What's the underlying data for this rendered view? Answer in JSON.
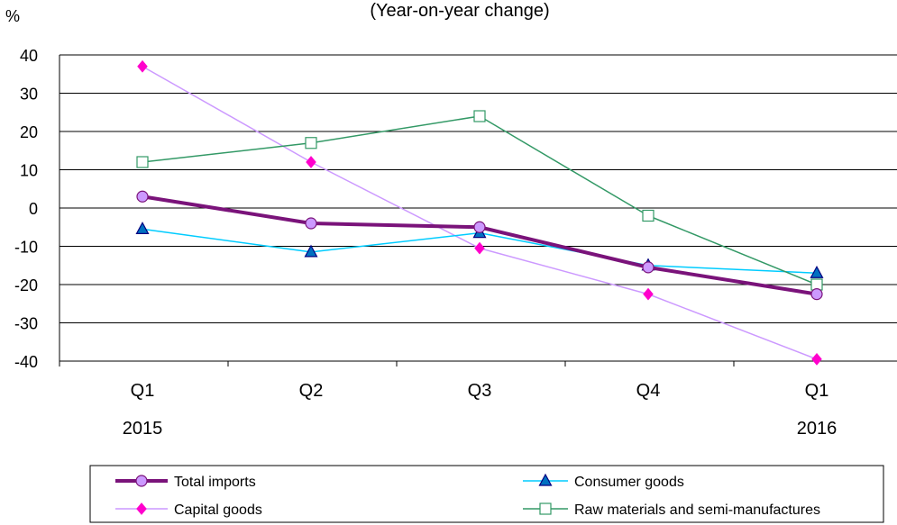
{
  "chart_data": {
    "type": "line",
    "title": "(Year-on-year change)",
    "ylabel": "%",
    "xlabel": "",
    "ylim": [
      -40,
      40
    ],
    "yticks": [
      40,
      30,
      20,
      10,
      0,
      -10,
      -20,
      -30,
      -40
    ],
    "grid": true,
    "legend_position": "bottom",
    "categories": [
      "Q1",
      "Q2",
      "Q3",
      "Q4",
      "Q1"
    ],
    "year_labels": [
      {
        "index": 0,
        "label": "2015"
      },
      {
        "index": 4,
        "label": "2016"
      }
    ],
    "series": [
      {
        "name": "Total imports",
        "values": [
          3,
          -4,
          -5,
          -15.5,
          -22.5
        ],
        "color": "#7a137a",
        "marker": "circle",
        "marker_fill": "#cc99ff",
        "line_width": 4
      },
      {
        "name": "Consumer goods",
        "values": [
          -5.5,
          -11.5,
          -6.5,
          -15,
          -17
        ],
        "color": "#00ccff",
        "marker": "triangle",
        "marker_fill": "#0070c0",
        "line_width": 1.5
      },
      {
        "name": "Capital goods",
        "values": [
          37,
          12,
          -10.5,
          -22.5,
          -39.5
        ],
        "color": "#cc99ff",
        "marker": "diamond",
        "marker_fill": "#ff00cc",
        "line_width": 1.5
      },
      {
        "name": "Raw materials and semi-manufactures",
        "values": [
          12,
          17,
          24,
          -2,
          -20
        ],
        "color": "#339966",
        "marker": "square",
        "marker_fill": "#ffffff",
        "line_width": 1.5
      }
    ]
  }
}
